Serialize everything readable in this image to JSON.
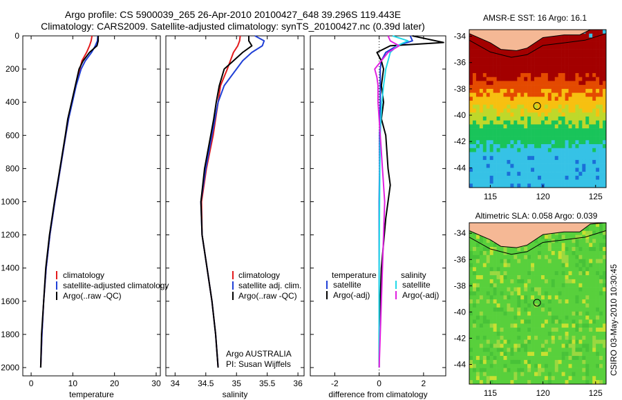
{
  "header": {
    "line1": "Argo profile: CS 5900039_265 26-Apr-2010 20100427_648 39.296S 119.443E",
    "line2": "Climatology: CARS2009. Satellite-adjusted climatology: synTS_20100427.nc (0.39d later)"
  },
  "credits": {
    "argo_org": "Argo AUSTRALIA",
    "pi": "PI: Susan Wijffels",
    "stamp": "CSIRO 03-May-2010 10:30:45"
  },
  "colors": {
    "climatology": "#e31a1c",
    "satellite": "#1f3fd6",
    "argo": "#000000",
    "sat_cyan": "#22d8e8",
    "argo_magenta": "#e020e0"
  },
  "chart_data": [
    {
      "type": "line",
      "name": "temperature-profile",
      "xlabel": "temperature",
      "ylabel": "",
      "xlim": [
        -2,
        31
      ],
      "ylim": [
        2050,
        0
      ],
      "xticks": [
        0,
        10,
        20,
        30
      ],
      "yticks": [
        0,
        200,
        400,
        600,
        800,
        1000,
        1200,
        1400,
        1600,
        1800,
        2000
      ],
      "legend": {
        "placement": "bottom-right",
        "entries": [
          "climatology",
          "satellite-adjusted climatology",
          "Argo(..raw -QC)"
        ]
      },
      "series": [
        {
          "name": "climatology",
          "color": "#e31a1c",
          "x": [
            14.6,
            14.4,
            14.0,
            13.3,
            12.2,
            11.7,
            10.7,
            9.8,
            9.0,
            8.3,
            7.0,
            5.7,
            4.5,
            3.6,
            3.0,
            2.6,
            2.3
          ],
          "y": [
            0,
            30,
            60,
            100,
            150,
            200,
            300,
            400,
            500,
            600,
            800,
            1000,
            1200,
            1400,
            1600,
            1800,
            2000
          ]
        },
        {
          "name": "satellite-adjusted climatology",
          "color": "#1f3fd6",
          "x": [
            16.0,
            15.9,
            15.4,
            14.5,
            13.0,
            12.0,
            10.8,
            9.9,
            9.0,
            8.3,
            7.0,
            5.7,
            4.5,
            3.6,
            3.0,
            2.6,
            2.3
          ],
          "y": [
            0,
            30,
            60,
            100,
            150,
            200,
            300,
            400,
            500,
            600,
            800,
            1000,
            1200,
            1400,
            1600,
            1800,
            2000
          ]
        },
        {
          "name": "Argo(..raw -QC)",
          "color": "#000000",
          "x": [
            16.1,
            16.1,
            15.8,
            14.0,
            12.5,
            11.5,
            10.6,
            9.7,
            8.8,
            8.2,
            6.9,
            5.6,
            4.4,
            3.5,
            3.0,
            2.5,
            2.3
          ],
          "y": [
            0,
            30,
            60,
            100,
            150,
            200,
            300,
            400,
            500,
            600,
            800,
            1000,
            1200,
            1400,
            1600,
            1800,
            2000
          ]
        }
      ]
    },
    {
      "type": "line",
      "name": "salinity-profile",
      "xlabel": "salinity",
      "xlim": [
        33.85,
        36.1
      ],
      "ylim": [
        2050,
        0
      ],
      "xticks": [
        34,
        34.5,
        35,
        35.5,
        36
      ],
      "yticks": [
        0,
        200,
        400,
        600,
        800,
        1000,
        1200,
        1400,
        1600,
        1800,
        2000
      ],
      "legend": {
        "placement": "bottom-right",
        "entries": [
          "climatology",
          "satellite adj. clim.",
          "Argo(..raw -QC)"
        ]
      },
      "series": [
        {
          "name": "climatology",
          "color": "#e31a1c",
          "x": [
            35.06,
            35.05,
            35.02,
            34.95,
            34.9,
            34.85,
            34.74,
            34.7,
            34.66,
            34.62,
            34.51,
            34.43,
            34.44,
            34.52,
            34.6,
            34.66,
            34.7
          ],
          "y": [
            0,
            30,
            60,
            100,
            150,
            200,
            300,
            400,
            500,
            600,
            800,
            1000,
            1200,
            1400,
            1600,
            1800,
            2000
          ]
        },
        {
          "name": "satellite adj. clim.",
          "color": "#1f3fd6",
          "x": [
            35.3,
            35.45,
            35.42,
            35.25,
            35.1,
            35.0,
            34.8,
            34.7,
            34.65,
            34.6,
            34.5,
            34.42,
            34.44,
            34.52,
            34.6,
            34.66,
            34.7
          ],
          "y": [
            0,
            30,
            60,
            100,
            150,
            200,
            300,
            400,
            500,
            600,
            800,
            1000,
            1200,
            1400,
            1600,
            1800,
            2000
          ]
        },
        {
          "name": "Argo(..raw -QC)",
          "color": "#000000",
          "x": [
            35.2,
            35.2,
            35.25,
            35.1,
            34.95,
            34.8,
            34.72,
            34.67,
            34.63,
            34.58,
            34.48,
            34.42,
            34.44,
            34.52,
            34.6,
            34.66,
            34.7
          ],
          "y": [
            0,
            30,
            60,
            100,
            150,
            200,
            300,
            400,
            500,
            600,
            800,
            1000,
            1200,
            1400,
            1600,
            1800,
            2000
          ]
        }
      ]
    },
    {
      "type": "line",
      "name": "difference-profile",
      "xlabel": "difference from climatology",
      "xlim": [
        -3.1,
        3.0
      ],
      "ylim": [
        2050,
        0
      ],
      "xticks": [
        -2,
        0,
        2
      ],
      "yticks": [
        0,
        200,
        400,
        600,
        800,
        1000,
        1200,
        1400,
        1600,
        1800,
        2000
      ],
      "legend": {
        "placement": "bottom",
        "entries": [
          "temperature",
          "satellite",
          "Argo(-adj)",
          "salinity",
          "satellite",
          "Argo(-adj)"
        ]
      },
      "series": [
        {
          "name": "temperature satellite",
          "color": "#1f3fd6",
          "x": [
            1.4,
            1.5,
            0.8,
            0.3,
            0.1,
            0.05,
            0.05,
            0.05,
            0.03,
            0.02,
            0.02,
            0.0,
            0.0,
            0.0,
            0.0,
            0.0,
            0.0
          ],
          "y": [
            0,
            30,
            60,
            100,
            150,
            200,
            300,
            400,
            500,
            600,
            800,
            1000,
            1200,
            1400,
            1600,
            1800,
            2000
          ]
        },
        {
          "name": "temperature Argo(-adj)",
          "color": "#000000",
          "x": [
            1.5,
            2.9,
            0.5,
            -0.1,
            0.1,
            0.2,
            0.1,
            0.2,
            0.1,
            0.3,
            0.4,
            0.5,
            0.3,
            0.1,
            0.05,
            0.0,
            0.0
          ],
          "y": [
            0,
            40,
            60,
            100,
            150,
            200,
            300,
            400,
            500,
            600,
            800,
            900,
            1100,
            1400,
            1600,
            1800,
            2000
          ]
        },
        {
          "name": "salinity satellite",
          "color": "#22d8e8",
          "x": [
            0.6,
            1.3,
            0.8,
            0.5,
            0.4,
            0.3,
            0.2,
            0.12,
            0.08,
            0.05,
            0.03,
            0.02,
            0.01,
            0.0,
            0.0,
            0.0,
            0.0
          ],
          "y": [
            0,
            30,
            60,
            100,
            150,
            200,
            300,
            400,
            500,
            600,
            800,
            1000,
            1200,
            1400,
            1600,
            1800,
            2000
          ]
        },
        {
          "name": "salinity Argo(-adj)",
          "color": "#e020e0",
          "x": [
            0.4,
            0.5,
            0.9,
            0.4,
            -0.2,
            -0.1,
            -0.05,
            -0.05,
            0.0,
            0.05,
            0.15,
            0.25,
            0.2,
            0.15,
            0.1,
            0.05,
            0.0
          ],
          "y": [
            0,
            30,
            60,
            100,
            200,
            250,
            300,
            400,
            500,
            600,
            800,
            1000,
            1200,
            1400,
            1600,
            1800,
            2000
          ]
        }
      ]
    },
    {
      "type": "heatmap",
      "name": "amsr-e-sst-map",
      "title": "AMSR-E SST: 16  Argo: 16.1",
      "xlim": [
        113,
        126
      ],
      "ylim": [
        -45.5,
        -33.5
      ],
      "xticks": [
        115,
        120,
        125
      ],
      "yticks": [
        -34,
        -36,
        -38,
        -40,
        -42,
        -44
      ],
      "argo_position": {
        "lon": 119.443,
        "lat": -39.296
      },
      "bands": [
        {
          "from": -33.5,
          "to": -37.3,
          "color": "#a30000"
        },
        {
          "from": -37.3,
          "to": -38.4,
          "color": "#e44a00"
        },
        {
          "from": -38.4,
          "to": -39.6,
          "color": "#f7c010"
        },
        {
          "from": -39.6,
          "to": -40.6,
          "color": "#bfd82a"
        },
        {
          "from": -40.6,
          "to": -42.4,
          "color": "#19c45a"
        },
        {
          "from": -42.4,
          "to": -45.5,
          "color": "#36c2e6"
        }
      ]
    },
    {
      "type": "heatmap",
      "name": "altimetric-sla-map",
      "title": "Altimetric SLA: 0.058  Argo: 0.039",
      "xlim": [
        113,
        126
      ],
      "ylim": [
        -45.5,
        -33.2
      ],
      "xticks": [
        115,
        120,
        125
      ],
      "yticks": [
        -34,
        -36,
        -38,
        -40,
        -42,
        -44
      ],
      "argo_position": {
        "lon": 119.443,
        "lat": -39.296
      },
      "base_color": "#58d03c"
    }
  ]
}
